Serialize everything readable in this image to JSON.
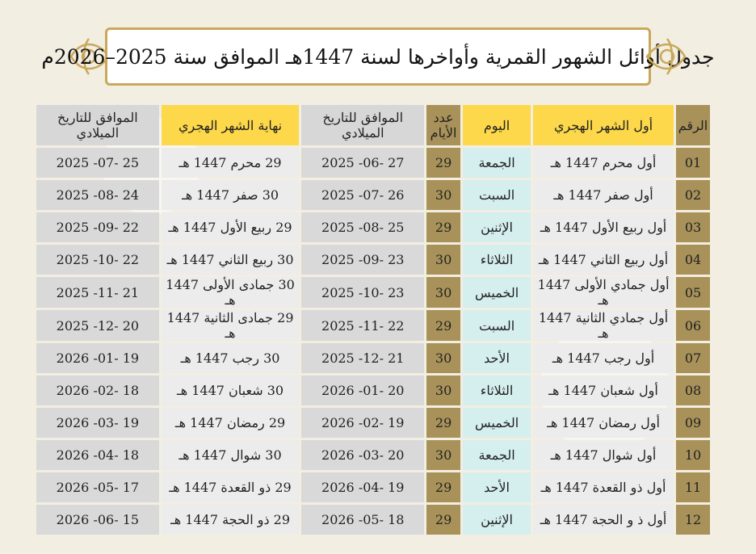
{
  "title": "جدول أوائل الشهور القمرية وأواخرها لسنة 1447هـ الموافق سنة 2025–2026م",
  "colors": {
    "gold": "#a8925a",
    "yellow": "#fcd84a",
    "gray": "#d9d9d9",
    "day": "#d5eeee",
    "frame": "#c9a85a"
  },
  "headers": [
    "الرقم",
    "أول الشهر الهجري",
    "اليوم",
    "عدد الأيام",
    "الموافق للتاريخ الميلادي",
    "نهاية الشهر الهجري",
    "الموافق للتاريخ  الميلادي"
  ],
  "rows": [
    [
      "01",
      "أول محرم 1447 هـ",
      "الجمعة",
      "29",
      "2025 -06- 27",
      "29 محرم 1447 هـ",
      "2025 -07- 25"
    ],
    [
      "02",
      "أول صفر 1447 هـ",
      "السبت",
      "30",
      "2025 -07- 26",
      "30 صفر 1447 هـ",
      "2025 -08- 24"
    ],
    [
      "03",
      "أول ربيع الأول 1447 هـ",
      "الإثنين",
      "29",
      "2025 -08- 25",
      "29 ربيع الأول 1447 هـ",
      "2025 -09- 22"
    ],
    [
      "04",
      "أول ربيع الثاني 1447 هـ",
      "الثلاثاء",
      "30",
      "2025 -09- 23",
      "30 ربيع الثاني 1447 هـ",
      "2025 -10- 22"
    ],
    [
      "05",
      "أول جمادي الأولى 1447 هـ",
      "الخميس",
      "30",
      "2025 -10- 23",
      "30 جمادى الأولى 1447 هـ",
      "2025 -11- 21"
    ],
    [
      "06",
      "أول جمادي الثانية 1447 هـ",
      "السبت",
      "29",
      "2025 -11- 22",
      "29 جمادى الثانية 1447 هـ",
      "2025 -12- 20"
    ],
    [
      "07",
      "أول رجب 1447 هـ",
      "الأحد",
      "30",
      "2025 -12- 21",
      "30 رجب 1447 هـ",
      "2026 -01- 19"
    ],
    [
      "08",
      "أول شعبان 1447 هـ",
      "الثلاثاء",
      "30",
      "2026 -01- 20",
      "30 شعبان 1447 هـ",
      "2026 -02- 18"
    ],
    [
      "09",
      "أول رمضان 1447 هـ",
      "الخميس",
      "29",
      "2026 -02- 19",
      "29 رمضان 1447 هـ",
      "2026 -03- 19"
    ],
    [
      "10",
      "أول شوال 1447 هـ",
      "الجمعة",
      "30",
      "2026 -03- 20",
      "30 شوال 1447 هـ",
      "2026 -04- 18"
    ],
    [
      "11",
      "أول ذو القعدة 1447 هـ",
      "الأحد",
      "29",
      "2026 -04- 19",
      "29 ذو القعدة 1447 هـ",
      "2026 -05- 17"
    ],
    [
      "12",
      "أول ذ و الحجة 1447 هـ",
      "الإثنين",
      "29",
      "2026 -05- 18",
      "29 ذو الحجة 1447 هـ",
      "2026 -06- 15"
    ]
  ]
}
